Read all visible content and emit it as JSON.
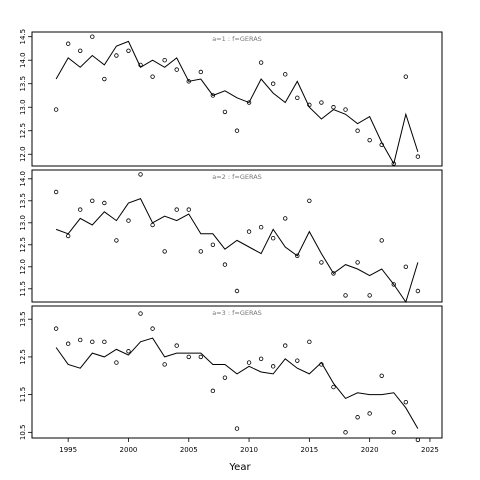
{
  "chart_data": {
    "type": "line",
    "xlabel": "Year",
    "xlim": [
      1992,
      2026
    ],
    "x_ticks": [
      1995,
      2000,
      2005,
      2010,
      2015,
      2020,
      2025
    ],
    "x": [
      1994,
      1995,
      1996,
      1997,
      1998,
      1999,
      2000,
      2001,
      2002,
      2003,
      2004,
      2005,
      2006,
      2007,
      2008,
      2009,
      2010,
      2011,
      2012,
      2013,
      2014,
      2015,
      2016,
      2017,
      2018,
      2019,
      2020,
      2021,
      2022,
      2023,
      2024
    ],
    "panels": [
      {
        "title": "a=1  :  f=GERAS",
        "ylim": [
          11.75,
          14.6
        ],
        "y_ticks": [
          12.0,
          12.5,
          13.0,
          13.5,
          14.0,
          14.5
        ],
        "y_tick_labels": [
          "12.0",
          "12.5",
          "13.0",
          "13.5",
          "14.0",
          "14.5"
        ],
        "fitted": [
          13.6,
          14.05,
          13.85,
          14.1,
          13.9,
          14.3,
          14.4,
          13.85,
          14.0,
          13.85,
          14.05,
          13.55,
          13.6,
          13.25,
          13.35,
          13.2,
          13.1,
          13.6,
          13.3,
          13.1,
          13.55,
          13.0,
          12.75,
          12.95,
          12.85,
          12.65,
          12.8,
          12.25,
          11.8,
          12.85,
          12.05
        ],
        "observed": [
          12.95,
          14.35,
          14.2,
          14.5,
          13.6,
          14.1,
          14.2,
          13.9,
          13.65,
          14.0,
          13.8,
          13.55,
          13.75,
          13.25,
          12.9,
          12.5,
          13.1,
          13.95,
          13.5,
          13.7,
          13.2,
          13.05,
          13.1,
          13.0,
          12.95,
          12.5,
          12.3,
          12.2,
          11.8,
          13.65,
          11.95
        ]
      },
      {
        "title": "a=2  :  f=GERAS",
        "ylim": [
          11.2,
          14.2
        ],
        "y_ticks": [
          11.5,
          12.0,
          12.5,
          13.0,
          13.5,
          14.0
        ],
        "y_tick_labels": [
          "11.5",
          "12.0",
          "12.5",
          "13.0",
          "13.5",
          "14.0"
        ],
        "fitted": [
          12.85,
          12.75,
          13.1,
          12.95,
          13.25,
          13.05,
          13.45,
          13.55,
          13.0,
          13.15,
          13.05,
          13.2,
          12.75,
          12.75,
          12.4,
          12.6,
          12.45,
          12.3,
          12.85,
          12.45,
          12.25,
          12.8,
          12.3,
          11.85,
          12.05,
          11.95,
          11.8,
          11.95,
          11.6,
          11.2,
          12.1
        ],
        "observed": [
          13.7,
          12.7,
          13.3,
          13.5,
          13.45,
          12.6,
          13.05,
          14.1,
          12.95,
          12.35,
          13.3,
          13.3,
          12.35,
          12.5,
          12.05,
          11.45,
          12.8,
          12.9,
          12.65,
          13.1,
          12.25,
          13.5,
          12.1,
          11.85,
          11.35,
          12.1,
          11.35,
          12.6,
          11.6,
          12.0,
          11.45
        ]
      },
      {
        "title": "a=3  :  f=GERAS",
        "ylim": [
          10.35,
          13.85
        ],
        "y_ticks": [
          10.5,
          11.5,
          12.5,
          13.5
        ],
        "y_tick_labels": [
          "10.5",
          "11.5",
          "12.5",
          "13.5"
        ],
        "fitted": [
          12.75,
          12.3,
          12.2,
          12.6,
          12.5,
          12.7,
          12.55,
          12.9,
          13.0,
          12.5,
          12.6,
          12.6,
          12.6,
          12.3,
          12.3,
          12.05,
          12.25,
          12.1,
          12.05,
          12.45,
          12.2,
          12.05,
          12.35,
          11.8,
          11.4,
          11.55,
          11.5,
          11.5,
          11.55,
          11.15,
          10.6
        ],
        "observed": [
          13.25,
          12.85,
          12.95,
          12.9,
          12.9,
          12.35,
          12.65,
          13.65,
          13.25,
          12.3,
          12.8,
          12.5,
          12.5,
          11.6,
          11.95,
          10.6,
          12.35,
          12.45,
          12.25,
          12.8,
          12.4,
          12.9,
          12.3,
          11.7,
          10.5,
          10.9,
          11.0,
          12.0,
          10.5,
          11.3,
          10.3
        ]
      }
    ]
  }
}
